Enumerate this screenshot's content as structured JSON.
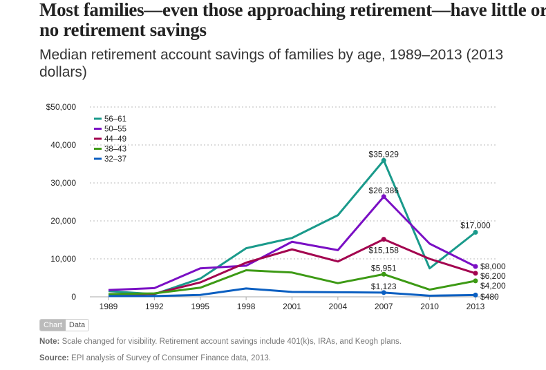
{
  "title": "Most families—even those approaching retirement—have little or no retirement savings",
  "subtitle": "Median retirement account savings of families by age, 1989–2013 (2013 dollars)",
  "toggle": {
    "chart": "Chart",
    "data": "Data"
  },
  "note": {
    "label": "Note:",
    "text": " Scale changed for visibility. Retirement account savings include 401(k)s, IRAs, and Keogh plans."
  },
  "source": {
    "label": "Source:",
    "text": " EPI analysis of  Survey of Consumer Finance data, 2013."
  },
  "chart_data": {
    "type": "line",
    "x": [
      1989,
      1992,
      1995,
      1998,
      2001,
      2004,
      2007,
      2010,
      2013
    ],
    "ylim": [
      0,
      50000
    ],
    "yticks": [
      0,
      10000,
      20000,
      30000,
      40000,
      50000
    ],
    "ytick_labels": [
      "0",
      "10,000",
      "20,000",
      "30,000",
      "40,000",
      "$50,000"
    ],
    "grid": true,
    "legend_position": "top-left",
    "series": [
      {
        "name": "56–61",
        "color": "#1a9a8b",
        "values": [
          1500,
          700,
          4800,
          12800,
          15500,
          21500,
          35929,
          7500,
          17000
        ],
        "labels": {
          "6": "$35,929",
          "8": "$17,000"
        }
      },
      {
        "name": "50–55",
        "color": "#7a0fc4",
        "values": [
          1800,
          2300,
          7500,
          8200,
          14500,
          12300,
          26386,
          14000,
          8000
        ],
        "labels": {
          "6": "$26,386",
          "8": "$8,000"
        }
      },
      {
        "name": "44–49",
        "color": "#a3044f",
        "values": [
          500,
          800,
          3800,
          9000,
          12500,
          9300,
          15158,
          10000,
          6200
        ],
        "labels": {
          "6": "$15,158",
          "8": "$6,200"
        }
      },
      {
        "name": "38–43",
        "color": "#3d9a15",
        "values": [
          700,
          900,
          2400,
          7000,
          6400,
          3600,
          5951,
          1900,
          4200
        ],
        "labels": {
          "6": "$5,951",
          "8": "$4,200"
        }
      },
      {
        "name": "32–37",
        "color": "#0b5fc1",
        "values": [
          200,
          200,
          500,
          2200,
          1300,
          1200,
          1123,
          300,
          480
        ],
        "labels": {
          "6": "$1,123",
          "8": "$480"
        }
      }
    ]
  }
}
